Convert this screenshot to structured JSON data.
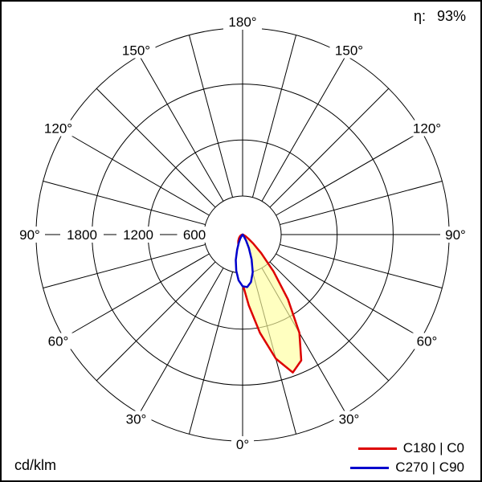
{
  "header": {
    "eta_label": "η:",
    "eta_value": "93%"
  },
  "footer": {
    "unit": "cd/klm"
  },
  "chart_data": {
    "type": "polar",
    "description": "Luminous intensity distribution curve (polar photometric diagram)",
    "unit": "cd/klm",
    "efficiency": "93%",
    "radial_range": [
      0,
      1800
    ],
    "radial_units_per_ring": 600,
    "radial_tick_labels": [
      "1800",
      "1200",
      "600"
    ],
    "angle_labels": [
      "0°",
      "30°",
      "60°",
      "90°",
      "120°",
      "150°",
      "180°"
    ],
    "grid": "on",
    "legend_position": "bottom-right",
    "series": [
      {
        "name": "C180 | C0",
        "color": "#dd0000",
        "fill_color": "#ffff9e",
        "fill_opacity": 0.65,
        "gamma": [
          -90,
          -75,
          -60,
          -45,
          -35,
          -30,
          -25,
          -20,
          -15,
          -10,
          -5,
          0,
          5,
          10,
          15,
          20,
          25,
          30,
          35,
          40,
          45,
          50,
          55,
          60,
          70,
          80,
          90
        ],
        "values": [
          0,
          10,
          25,
          45,
          65,
          75,
          90,
          105,
          125,
          155,
          230,
          430,
          620,
          870,
          1120,
          1280,
          1210,
          990,
          690,
          420,
          230,
          120,
          60,
          30,
          10,
          5,
          0
        ]
      },
      {
        "name": "C270 | C90",
        "color": "#0000cc",
        "fill_color": "#ffffff",
        "fill_opacity": 1,
        "gamma": [
          -40,
          -35,
          -30,
          -25,
          -20,
          -15,
          -10,
          -5,
          0,
          5,
          10,
          15,
          20,
          25,
          30,
          35,
          40
        ],
        "values": [
          0,
          15,
          40,
          80,
          140,
          230,
          320,
          400,
          450,
          460,
          420,
          340,
          230,
          130,
          60,
          20,
          0
        ]
      }
    ]
  }
}
